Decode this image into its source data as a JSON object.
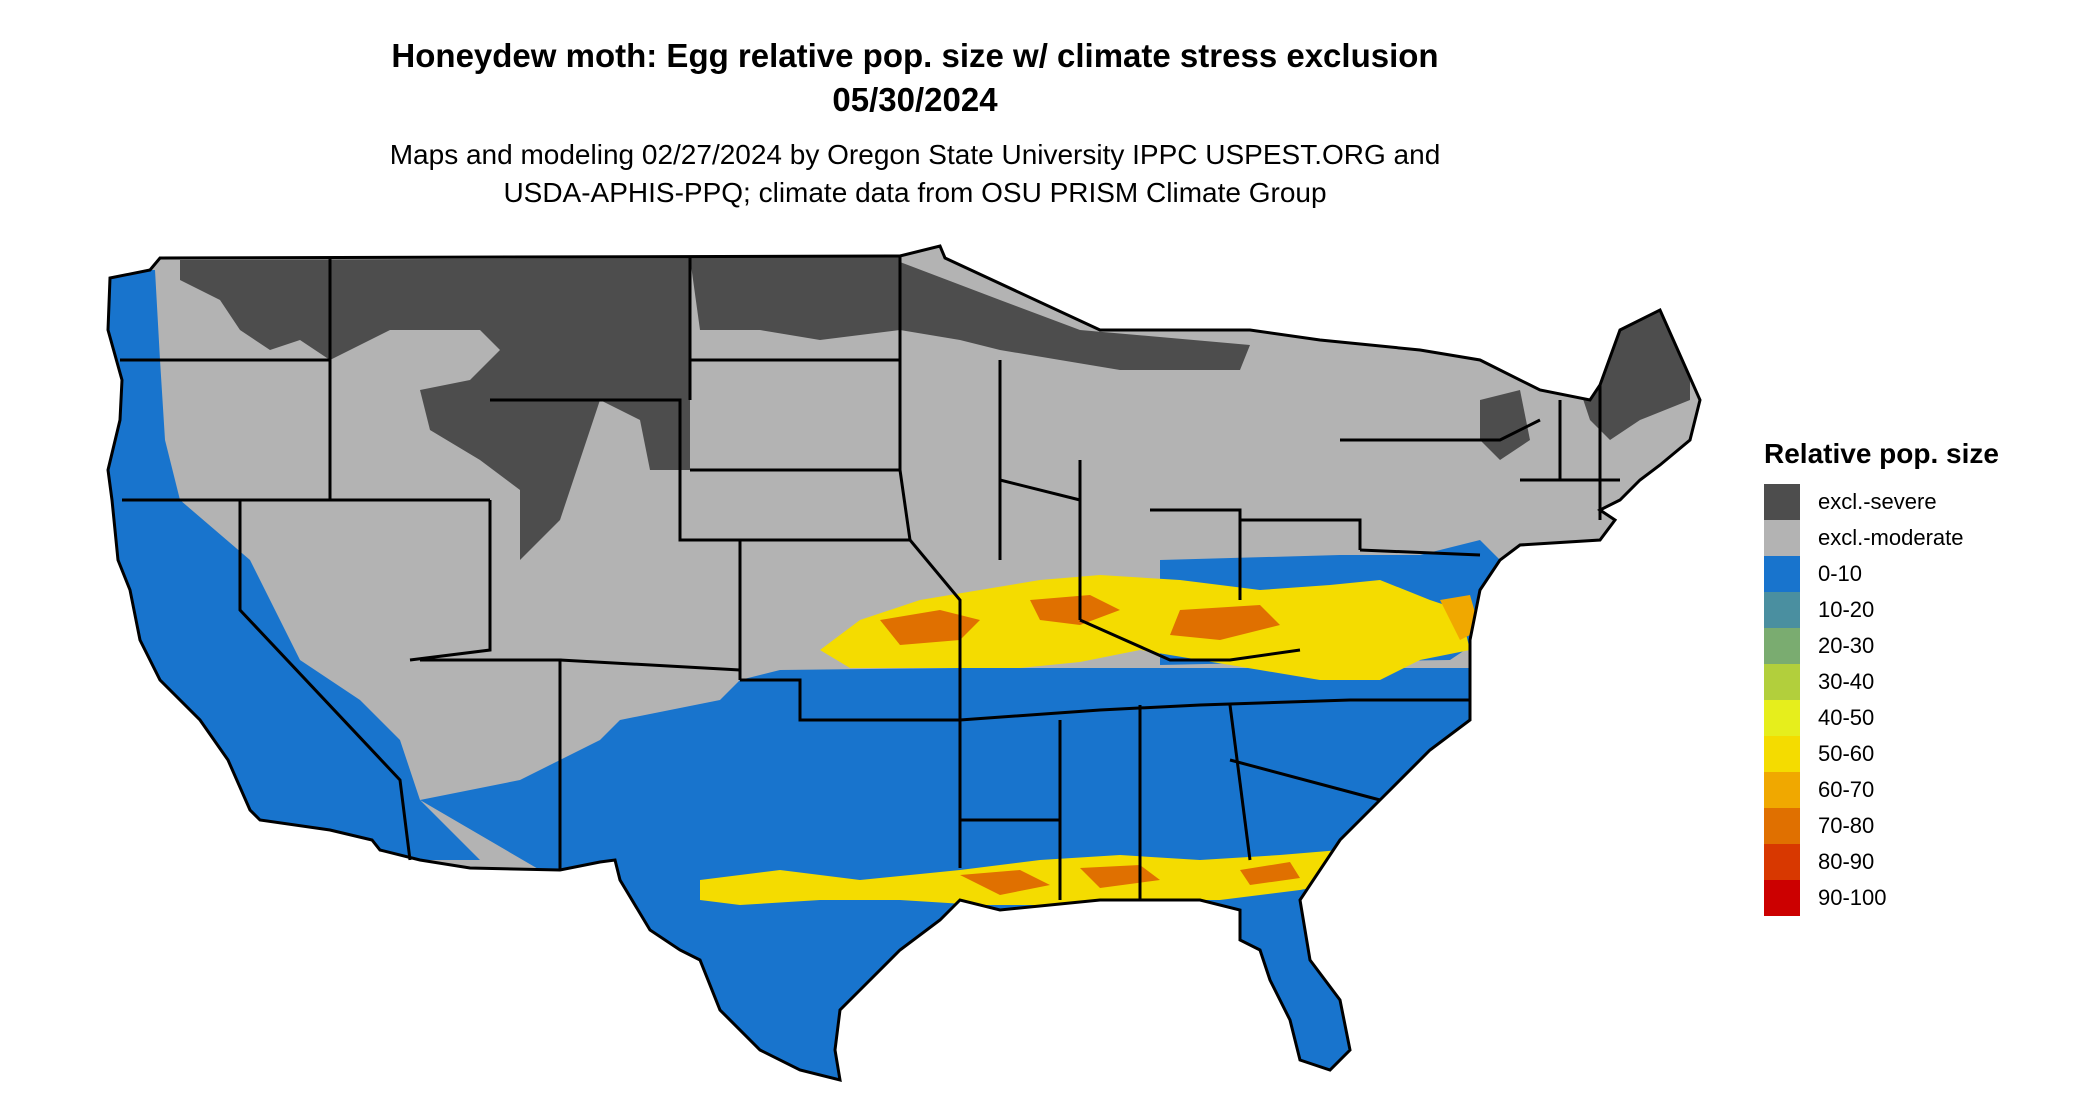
{
  "title": {
    "line1": "Honeydew moth: Egg relative pop. size w/ climate stress exclusion",
    "line2": "05/30/2024"
  },
  "subtitle": {
    "line1": "Maps and modeling 02/27/2024 by Oregon State University IPPC USPEST.ORG and",
    "line2": "USDA-APHIS-PPQ; climate data from OSU PRISM Climate Group"
  },
  "legend": {
    "title": "Relative pop. size",
    "items": [
      {
        "label": "excl.-severe",
        "color": "#4d4d4d"
      },
      {
        "label": "excl.-moderate",
        "color": "#b3b3b3"
      },
      {
        "label": "0-10",
        "color": "#1874cd"
      },
      {
        "label": "10-20",
        "color": "#4a8fa0"
      },
      {
        "label": "20-30",
        "color": "#7aac70"
      },
      {
        "label": "30-40",
        "color": "#b2cf3c"
      },
      {
        "label": "40-50",
        "color": "#e6ee1c"
      },
      {
        "label": "50-60",
        "color": "#f4dc00"
      },
      {
        "label": "60-70",
        "color": "#f0a800"
      },
      {
        "label": "70-80",
        "color": "#e07000"
      },
      {
        "label": "80-90",
        "color": "#d83800"
      },
      {
        "label": "90-100",
        "color": "#cc0000"
      }
    ]
  }
}
